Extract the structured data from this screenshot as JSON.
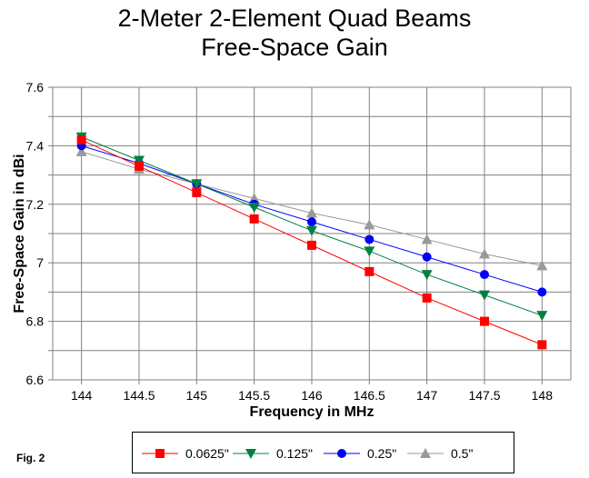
{
  "chart_data": {
    "type": "line",
    "title": "2-Meter 2-Element Quad Beams",
    "subtitle": "Free-Space Gain",
    "xlabel": "Frequency in MHz",
    "ylabel": "Free-Space Gain in dBi",
    "x": [
      144,
      144.5,
      145,
      145.5,
      146,
      146.5,
      147,
      147.5,
      148
    ],
    "x_tick_labels": [
      "144",
      "144.5",
      "145",
      "145.5",
      "146",
      "146.5",
      "147",
      "147.5",
      "148"
    ],
    "xlim": [
      143.75,
      148.25
    ],
    "ylim": [
      6.6,
      7.6
    ],
    "y_ticks": [
      6.6,
      6.8,
      7,
      7.2,
      7.4,
      7.6
    ],
    "y_tick_labels": [
      "6.6",
      "6.8",
      "7",
      "7.2",
      "7.4",
      "7.6"
    ],
    "grid": true,
    "legend_position": "bottom",
    "series": [
      {
        "name": "0.0625\"",
        "color": "#ff0000",
        "marker": "square",
        "values": [
          7.42,
          7.33,
          7.24,
          7.15,
          7.06,
          6.97,
          6.88,
          6.8,
          6.72
        ]
      },
      {
        "name": "0.125\"",
        "color": "#008040",
        "marker": "triangle-down",
        "values": [
          7.43,
          7.35,
          7.27,
          7.19,
          7.11,
          7.04,
          6.96,
          6.89,
          6.82
        ]
      },
      {
        "name": "0.25\"",
        "color": "#0000ff",
        "marker": "circle",
        "values": [
          7.4,
          7.34,
          7.27,
          7.2,
          7.14,
          7.08,
          7.02,
          6.96,
          6.9
        ]
      },
      {
        "name": "0.5\"",
        "color": "#999999",
        "marker": "triangle-up",
        "values": [
          7.38,
          7.32,
          7.27,
          7.22,
          7.17,
          7.13,
          7.08,
          7.03,
          6.99
        ]
      }
    ]
  },
  "figure_label": "Fig. 2"
}
